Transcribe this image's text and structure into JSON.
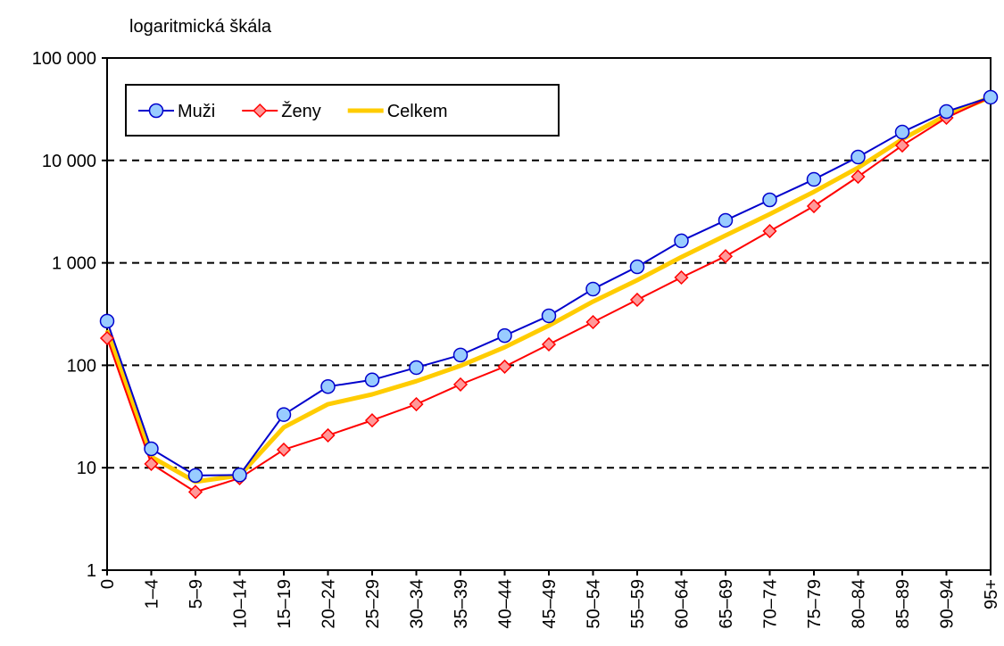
{
  "chart_data": {
    "type": "line",
    "annotation": "logaritmická škála",
    "categories": [
      "0",
      "1–4",
      "5–9",
      "10–14",
      "15–19",
      "20–24",
      "25–29",
      "30–34",
      "35–39",
      "40–44",
      "45–49",
      "50–54",
      "55–59",
      "60–64",
      "65–69",
      "70–74",
      "75–79",
      "80–84",
      "85–89",
      "90–94",
      "95+"
    ],
    "series": [
      {
        "name": "Muži",
        "color": "#0000cc",
        "marker": "circle",
        "marker_color": "#99ccff",
        "values": [
          270,
          15.3,
          8.4,
          8.5,
          33,
          62,
          72,
          95,
          126,
          195,
          304,
          555,
          915,
          1640,
          2600,
          4120,
          6530,
          10800,
          18900,
          30000,
          41400
        ]
      },
      {
        "name": "Ženy",
        "color": "#ff0000",
        "marker": "diamond",
        "marker_color": "#ff9999",
        "values": [
          184,
          10.9,
          5.8,
          7.9,
          15,
          20.7,
          29,
          41.7,
          65,
          97,
          160,
          264,
          436,
          720,
          1160,
          2040,
          3580,
          6940,
          14000,
          26100,
          41400
        ]
      },
      {
        "name": "Celkem",
        "color": "#ffcc00",
        "marker": "none",
        "values": [
          220,
          12.8,
          7.3,
          8.4,
          24.8,
          41.7,
          52,
          70,
          99,
          150,
          244,
          419,
          678,
          1140,
          1850,
          2990,
          4940,
          8490,
          16100,
          27700,
          41400
        ]
      }
    ],
    "ylim": [
      1,
      100000
    ],
    "yticks": [
      1,
      10,
      100,
      {
        "value": 1000,
        "label": "1 000"
      },
      {
        "value": 10000,
        "label": "10 000"
      },
      {
        "value": 100000,
        "label": "100 000"
      }
    ],
    "log_scale": true,
    "grid": true,
    "legend": "top-left"
  }
}
